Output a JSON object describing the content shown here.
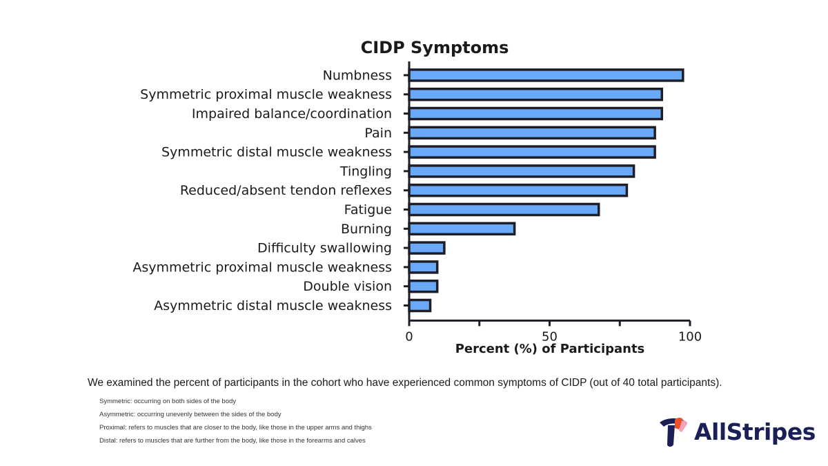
{
  "chart_data": {
    "type": "bar",
    "orientation": "horizontal",
    "title": "CIDP Symptoms",
    "xlabel": "Percent (%) of Participants",
    "ylabel": "",
    "xlim": [
      0,
      100
    ],
    "xticks": [
      0,
      50,
      100
    ],
    "categories": [
      "Numbness",
      "Symmetric proximal muscle weakness",
      "Impaired balance/coordination",
      "Pain",
      "Symmetric distal muscle weakness",
      "Tingling",
      "Reduced/absent tendon reflexes",
      "Fatigue",
      "Burning",
      "Difficulty swallowing",
      "Asymmetric proximal muscle weakness",
      "Double vision",
      "Asymmetric distal muscle weakness"
    ],
    "values": [
      97.5,
      90,
      90,
      87.5,
      87.5,
      80,
      77.5,
      67.5,
      37.5,
      12.5,
      10,
      10,
      7.5
    ],
    "grid": false,
    "legend": "none"
  },
  "colors": {
    "bar": "#6aa9f7",
    "outline": "#1e1e28",
    "brand": "#1b1f57"
  },
  "caption": "We examined the percent of participants in the cohort who have experienced common symptoms of CIDP (out of 40 total participants).",
  "notes": [
    "Symmetric: occurring on both sides of the body",
    "Asymmetric: occurring unevenly between the sides of the body",
    "Proximal: refers to muscles that are closer to the body, like those in the upper arms and thighs",
    "Distal: refers to muscles that are further from the body, like those in the forearms and calves"
  ],
  "brand": {
    "name": "AllStripes",
    "icon": "allstripes-logo-icon"
  }
}
